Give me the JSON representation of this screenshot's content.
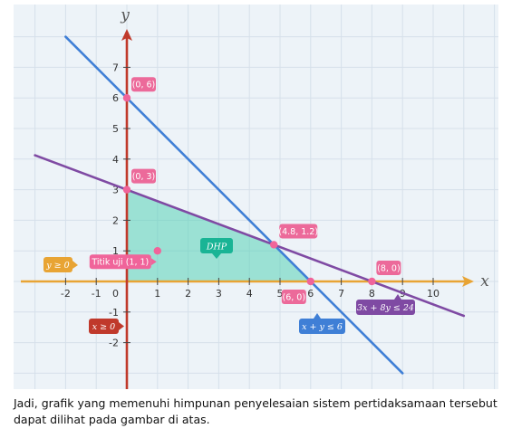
{
  "chart_data": {
    "type": "line",
    "xlim": [
      -3,
      12
    ],
    "ylim": [
      -3,
      8
    ],
    "x_ticks": [
      -2,
      -1,
      1,
      2,
      3,
      4,
      5,
      6,
      7,
      8,
      9,
      10
    ],
    "y_ticks": [
      -2,
      -1,
      1,
      2,
      3,
      4,
      5,
      6,
      7
    ],
    "origin_label": "0",
    "xlabel": "x",
    "ylabel": "y",
    "grid": true,
    "lines": [
      {
        "label": "x + y ≤ 6",
        "color": "#3f7fd6",
        "points": [
          [
            -2,
            8
          ],
          [
            9,
            -3
          ]
        ]
      },
      {
        "label": "3x + 8y ≤ 24",
        "color": "#7f4aa3",
        "points": [
          [
            -3,
            4.125
          ],
          [
            11,
            -1.125
          ]
        ]
      }
    ],
    "boundary_lines": [
      {
        "label": "y ≥ 0",
        "color": "#e8a434"
      },
      {
        "label": "x ≥ 0",
        "color": "#c0392b"
      }
    ],
    "region": {
      "label": "DHP",
      "vertices": [
        [
          0,
          0
        ],
        [
          0,
          3
        ],
        [
          4.8,
          1.2
        ],
        [
          6,
          0
        ]
      ],
      "color": "#58d2b6"
    },
    "points": [
      {
        "x": 0,
        "y": 6,
        "label": "(0, 6)"
      },
      {
        "x": 0,
        "y": 3,
        "label": "(0, 3)"
      },
      {
        "x": 4.8,
        "y": 1.2,
        "label": "(4.8, 1.2)"
      },
      {
        "x": 6,
        "y": 0,
        "label": "(6, 0)"
      },
      {
        "x": 8,
        "y": 0,
        "label": "(8, 0)"
      },
      {
        "x": 1,
        "y": 1,
        "label": "Titik uji (1, 1)"
      }
    ]
  },
  "colors": {
    "plot_bg": "#edf3f8",
    "grid": "#d6e0ea",
    "point": "#f0649a",
    "label_pink": "#ec6a9a",
    "test_label": "#f0649a"
  },
  "caption": "Jadi, grafik yang memenuhi himpunan penyelesaian sistem pertidaksamaan tersebut dapat dilihat pada gambar di atas."
}
